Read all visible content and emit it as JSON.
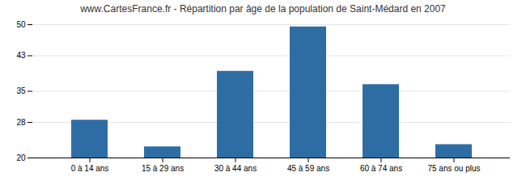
{
  "chart_data": {
    "type": "bar",
    "title": "www.CartesFrance.fr - Répartition par âge de la population de Saint-Médard en 2007",
    "categories": [
      "0 à 14 ans",
      "15 à 29 ans",
      "30 à 44 ans",
      "45 à 59 ans",
      "60 à 74 ans",
      "75 ans ou plus"
    ],
    "values": [
      28.5,
      22.5,
      39.5,
      49.5,
      36.5,
      23.0
    ],
    "color": "#2E6DA4",
    "ylim": [
      20,
      50
    ],
    "yticks": [
      20,
      28,
      35,
      43,
      50
    ],
    "grid": true
  }
}
